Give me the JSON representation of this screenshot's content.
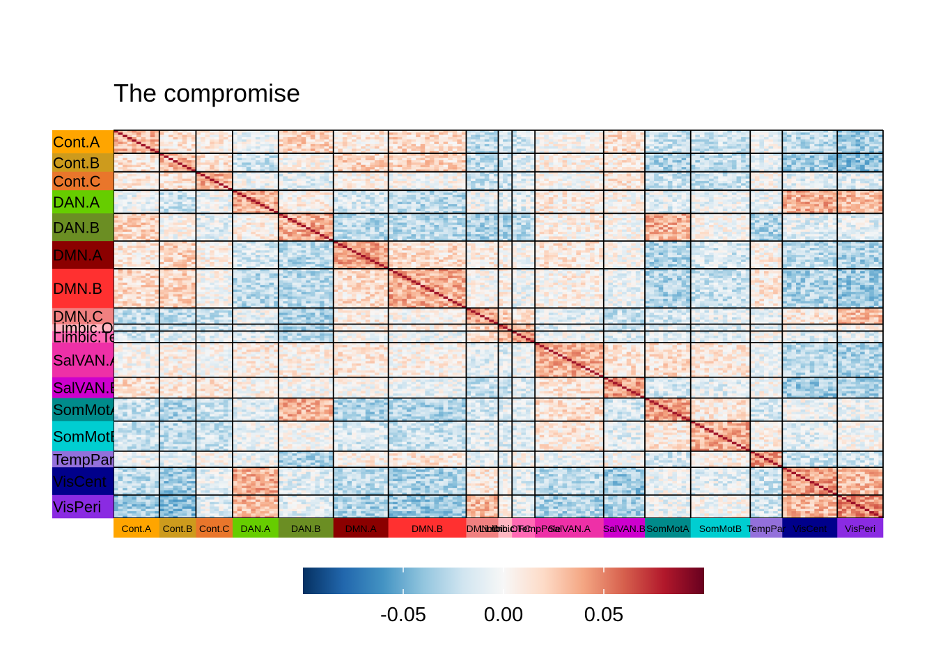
{
  "chart_data": {
    "type": "heatmap",
    "title": "The compromise",
    "networks": [
      {
        "label": "Cont.A",
        "size": 10,
        "color": "#FFA500"
      },
      {
        "label": "Cont.B",
        "size": 8,
        "color": "#CD9B1D"
      },
      {
        "label": "Cont.C",
        "size": 8,
        "color": "#E9762B"
      },
      {
        "label": "DAN.A",
        "size": 10,
        "color": "#66CD00"
      },
      {
        "label": "DAN.B",
        "size": 12,
        "color": "#6B8E23"
      },
      {
        "label": "DMN.A",
        "size": 12,
        "color": "#8B0000"
      },
      {
        "label": "DMN.B",
        "size": 17,
        "color": "#FF3030"
      },
      {
        "label": "DMN.C",
        "size": 7,
        "color": "#F08080"
      },
      {
        "label": "Limbic.OFC",
        "size": 3,
        "color": "#FFB6C1"
      },
      {
        "label": "Limbic.TempPole",
        "size": 5,
        "color": "#FF69B4"
      },
      {
        "label": "SalVAN.A",
        "size": 15,
        "color": "#EE30A7"
      },
      {
        "label": "SalVAN.B",
        "size": 9,
        "color": "#CD00CD"
      },
      {
        "label": "SomMotA",
        "size": 10,
        "color": "#008B8B"
      },
      {
        "label": "SomMotB",
        "size": 13,
        "color": "#00CED1"
      },
      {
        "label": "TempPar",
        "size": 7,
        "color": "#9370DB"
      },
      {
        "label": "VisCent",
        "size": 12,
        "color": "#00008B"
      },
      {
        "label": "VisPeri",
        "size": 10,
        "color": "#8A2BE2"
      }
    ],
    "row_labels": [
      "Cont.A",
      "Cont.B",
      "Cont.C",
      "DAN.A",
      "DAN.B",
      "DMN.A",
      "DMN.B",
      "DMN.C",
      "Limbic.OFC",
      "Limbic.TempPole",
      "SalVAN.A",
      "SalVAN.B",
      "SomMotA",
      "SomMotB",
      "TempPar",
      "VisCent",
      "VisPeri"
    ],
    "column_labels": [
      "Cont.A",
      "Cont.B",
      "Cont.C",
      "DAN.A",
      "DAN.B",
      "DMN.A",
      "DMN.B",
      "DMN.C",
      "Limbic.OFC",
      "Limbic.TempPole",
      "SalVAN.A",
      "SalVAN.B",
      "SomMotA",
      "SomMotB",
      "TempPar",
      "VisCent",
      "VisPeri"
    ],
    "block_means": [
      [
        0.03,
        0.012,
        0.008,
        -0.005,
        0.022,
        0.01,
        0.018,
        -0.025,
        -0.02,
        -0.015,
        0.0,
        0.015,
        -0.02,
        -0.02,
        -0.005,
        -0.025,
        -0.035
      ],
      [
        0.012,
        0.03,
        0.012,
        -0.02,
        0.0,
        0.02,
        0.02,
        -0.025,
        -0.02,
        -0.01,
        0.005,
        0.01,
        -0.03,
        -0.025,
        -0.01,
        -0.035,
        -0.04
      ],
      [
        0.008,
        0.012,
        0.035,
        -0.005,
        -0.01,
        0.005,
        0.0,
        -0.02,
        -0.02,
        -0.01,
        0.0,
        0.01,
        -0.02,
        -0.02,
        0.0,
        -0.01,
        -0.01
      ],
      [
        -0.005,
        -0.02,
        -0.005,
        0.035,
        0.005,
        -0.015,
        -0.025,
        -0.005,
        -0.01,
        -0.01,
        0.008,
        0.003,
        -0.01,
        -0.005,
        -0.005,
        0.035,
        0.03
      ],
      [
        0.02,
        -0.025,
        -0.015,
        0.005,
        0.035,
        -0.025,
        -0.025,
        -0.03,
        -0.03,
        -0.025,
        0.005,
        0.0,
        0.035,
        0.0,
        -0.03,
        -0.01,
        -0.01
      ],
      [
        0.01,
        0.01,
        0.005,
        -0.015,
        -0.025,
        0.04,
        0.015,
        0.005,
        0.005,
        0.0,
        0.01,
        0.0,
        -0.03,
        -0.015,
        0.005,
        -0.025,
        -0.03
      ],
      [
        0.02,
        0.015,
        0.0,
        -0.025,
        -0.025,
        0.015,
        0.035,
        0.0,
        0.005,
        -0.005,
        0.005,
        -0.005,
        -0.03,
        -0.02,
        0.01,
        -0.03,
        -0.035
      ],
      [
        -0.03,
        -0.015,
        -0.01,
        0.0,
        -0.02,
        0.005,
        0.0,
        0.04,
        0.02,
        0.01,
        -0.01,
        -0.02,
        -0.015,
        -0.01,
        -0.005,
        0.01,
        0.03
      ],
      [
        -0.02,
        -0.02,
        -0.015,
        -0.01,
        -0.03,
        0.005,
        0.005,
        0.02,
        0.045,
        0.03,
        -0.01,
        -0.02,
        -0.01,
        -0.01,
        -0.01,
        0.0,
        0.005
      ],
      [
        -0.015,
        -0.01,
        -0.01,
        -0.01,
        -0.025,
        0.0,
        -0.005,
        0.01,
        0.03,
        0.04,
        -0.005,
        -0.01,
        -0.01,
        -0.01,
        0.0,
        -0.01,
        -0.01
      ],
      [
        0.0,
        0.005,
        0.0,
        0.008,
        0.005,
        0.01,
        0.005,
        -0.01,
        -0.01,
        -0.005,
        0.035,
        0.012,
        0.015,
        0.01,
        -0.005,
        -0.025,
        -0.03
      ],
      [
        0.015,
        0.01,
        0.01,
        0.003,
        0.0,
        0.0,
        -0.005,
        -0.02,
        -0.02,
        -0.01,
        0.012,
        0.04,
        -0.015,
        -0.01,
        0.0,
        -0.035,
        -0.03
      ],
      [
        -0.02,
        -0.03,
        -0.02,
        -0.01,
        0.035,
        -0.03,
        -0.03,
        -0.015,
        -0.01,
        -0.01,
        0.015,
        -0.015,
        0.04,
        0.01,
        -0.015,
        -0.005,
        -0.005
      ],
      [
        -0.02,
        -0.025,
        -0.02,
        -0.005,
        0.0,
        -0.015,
        -0.02,
        -0.01,
        -0.01,
        -0.01,
        0.02,
        -0.01,
        0.01,
        0.035,
        0.005,
        -0.01,
        0.0
      ],
      [
        -0.005,
        -0.01,
        0.0,
        -0.005,
        -0.03,
        0.005,
        0.01,
        -0.005,
        -0.01,
        0.0,
        -0.005,
        0.0,
        -0.015,
        0.005,
        0.04,
        -0.02,
        -0.015
      ],
      [
        -0.025,
        -0.03,
        -0.01,
        0.03,
        -0.015,
        -0.025,
        -0.03,
        0.01,
        0.0,
        -0.01,
        -0.025,
        -0.035,
        -0.005,
        -0.01,
        -0.02,
        0.04,
        0.03
      ],
      [
        -0.035,
        -0.03,
        -0.01,
        0.025,
        -0.015,
        -0.03,
        -0.03,
        0.03,
        0.005,
        -0.01,
        -0.03,
        -0.03,
        -0.005,
        0.0,
        -0.015,
        0.03,
        0.045
      ]
    ],
    "color_scale": {
      "min": -0.1,
      "max": 0.1,
      "low_color": "#053061",
      "mid_color": "#F7F7F7",
      "high_color": "#67001F",
      "palette": "RdBu"
    },
    "legend": {
      "position": "bottom",
      "ticks": [
        -0.05,
        0.0,
        0.05
      ],
      "tick_labels": [
        "-0.05",
        "0.00",
        "0.05"
      ]
    }
  }
}
